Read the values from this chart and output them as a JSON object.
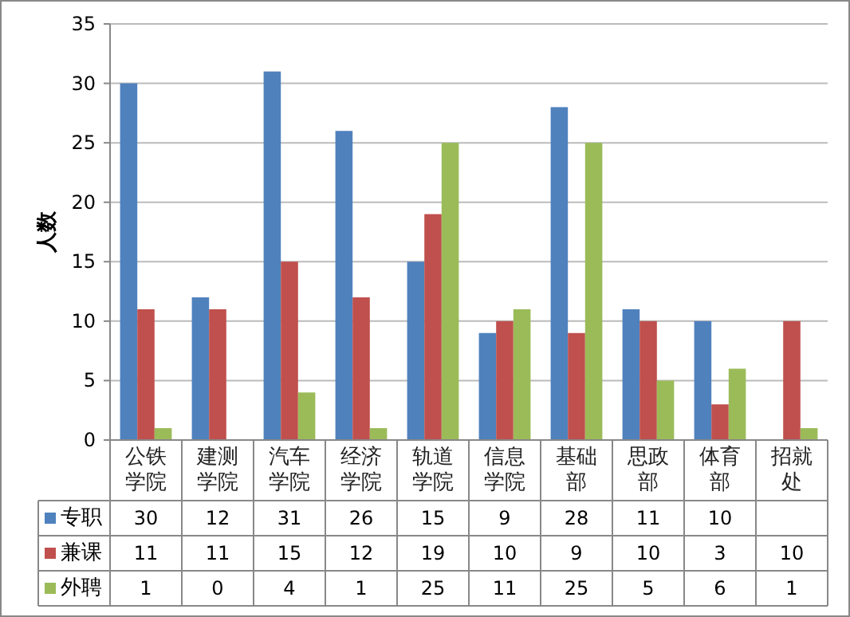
{
  "chart_data": {
    "type": "bar",
    "ylabel": "人数",
    "categories": [
      "公铁学院",
      "建测学院",
      "汽车学院",
      "经济学院",
      "轨道学院",
      "信息学院",
      "基础部",
      "思政部",
      "体育部",
      "招就处"
    ],
    "series": [
      {
        "name": "专职",
        "color": "#4f81bd",
        "values": [
          30,
          12,
          31,
          26,
          15,
          9,
          28,
          11,
          10,
          null
        ]
      },
      {
        "name": "兼课",
        "color": "#c0504d",
        "values": [
          11,
          11,
          15,
          12,
          19,
          10,
          9,
          10,
          3,
          10
        ]
      },
      {
        "name": "外聘",
        "color": "#9bbb59",
        "values": [
          1,
          0,
          4,
          1,
          25,
          11,
          25,
          5,
          6,
          1
        ]
      }
    ],
    "ylim": [
      0,
      35
    ],
    "yticks": [
      0,
      5,
      10,
      15,
      20,
      25,
      30,
      35
    ],
    "grid": "y",
    "legend": "bottom",
    "data_labels": true
  }
}
